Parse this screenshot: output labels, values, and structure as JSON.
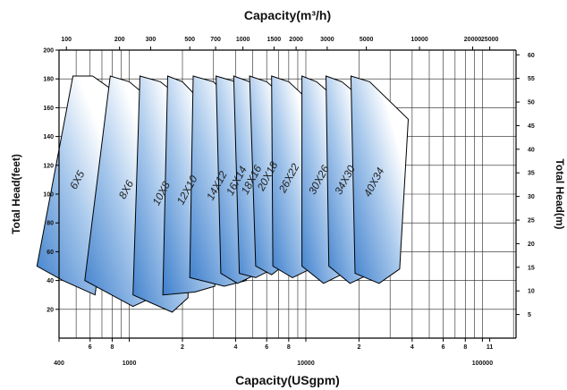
{
  "chart_data": {
    "type": "area",
    "title_top": "Capacity(m³/h)",
    "xlabel_bottom": "Capacity(USgpm)",
    "ylabel_left": "Total Head(feet)",
    "ylabel_right": "Total Head(m)",
    "top_ticks": [
      "100",
      "200",
      "300",
      "500",
      "700",
      "1000",
      "1500",
      "2000",
      "3000",
      "5000",
      "10000",
      "20000",
      "25000"
    ],
    "bottom_ticks": [
      "400",
      "6",
      "8",
      "1000",
      "2",
      "4",
      "6",
      "8",
      "10000",
      "2",
      "4",
      "6",
      "8",
      "100000",
      "11"
    ],
    "left_ticks": [
      "20",
      "40",
      "60",
      "80",
      "100",
      "120",
      "140",
      "160",
      "180",
      "200"
    ],
    "right_ticks": [
      "5",
      "10",
      "15",
      "20",
      "25",
      "30",
      "35",
      "40",
      "45",
      "50",
      "55",
      "60"
    ],
    "ylim_feet": [
      0,
      200
    ],
    "ylim_m": [
      0,
      61
    ],
    "series": [
      {
        "name": "6X5",
        "pts": [
          [
            480,
            182
          ],
          [
            620,
            182
          ],
          [
            900,
            168
          ],
          [
            640,
            30
          ],
          [
            420,
            40
          ],
          [
            300,
            50
          ]
        ]
      },
      {
        "name": "8X6",
        "pts": [
          [
            780,
            182
          ],
          [
            1000,
            178
          ],
          [
            1500,
            160
          ],
          [
            1450,
            30
          ],
          [
            1050,
            22
          ],
          [
            560,
            40
          ]
        ]
      },
      {
        "name": "10X8",
        "pts": [
          [
            1150,
            182
          ],
          [
            1500,
            178
          ],
          [
            2300,
            160
          ],
          [
            2150,
            28
          ],
          [
            1750,
            18
          ],
          [
            1050,
            30
          ]
        ]
      },
      {
        "name": "12X10",
        "pts": [
          [
            1650,
            182
          ],
          [
            2000,
            178
          ],
          [
            3200,
            152
          ],
          [
            3050,
            36
          ],
          [
            2350,
            32
          ],
          [
            1550,
            30
          ]
        ]
      },
      {
        "name": "14X12",
        "pts": [
          [
            2300,
            182
          ],
          [
            3000,
            178
          ],
          [
            5000,
            150
          ],
          [
            4600,
            40
          ],
          [
            3450,
            36
          ],
          [
            2200,
            42
          ]
        ]
      },
      {
        "name": "16X14",
        "pts": [
          [
            3100,
            182
          ],
          [
            4000,
            178
          ],
          [
            6000,
            160
          ],
          [
            5600,
            46
          ],
          [
            4100,
            38
          ],
          [
            3300,
            45
          ]
        ]
      },
      {
        "name": "18X16",
        "pts": [
          [
            3900,
            182
          ],
          [
            4800,
            178
          ],
          [
            6800,
            158
          ],
          [
            6500,
            48
          ],
          [
            5200,
            42
          ],
          [
            4200,
            45
          ]
        ]
      },
      {
        "name": "20X18",
        "pts": [
          [
            4800,
            182
          ],
          [
            6000,
            178
          ],
          [
            8500,
            162
          ],
          [
            7800,
            52
          ],
          [
            6400,
            44
          ],
          [
            5200,
            50
          ]
        ]
      },
      {
        "name": "26X22",
        "pts": [
          [
            6400,
            182
          ],
          [
            8000,
            178
          ],
          [
            11500,
            160
          ],
          [
            10600,
            48
          ],
          [
            8400,
            42
          ],
          [
            6500,
            50
          ]
        ]
      },
      {
        "name": "30X26",
        "pts": [
          [
            9500,
            182
          ],
          [
            11500,
            178
          ],
          [
            17000,
            160
          ],
          [
            15800,
            44
          ],
          [
            12600,
            38
          ],
          [
            9500,
            50
          ]
        ]
      },
      {
        "name": "34X30",
        "pts": [
          [
            13000,
            182
          ],
          [
            16000,
            178
          ],
          [
            24000,
            160
          ],
          [
            22500,
            44
          ],
          [
            17800,
            38
          ],
          [
            13500,
            50
          ]
        ]
      },
      {
        "name": "40X34",
        "pts": [
          [
            18000,
            182
          ],
          [
            23000,
            178
          ],
          [
            38000,
            152
          ],
          [
            34000,
            48
          ],
          [
            26000,
            38
          ],
          [
            19000,
            45
          ]
        ]
      }
    ]
  }
}
